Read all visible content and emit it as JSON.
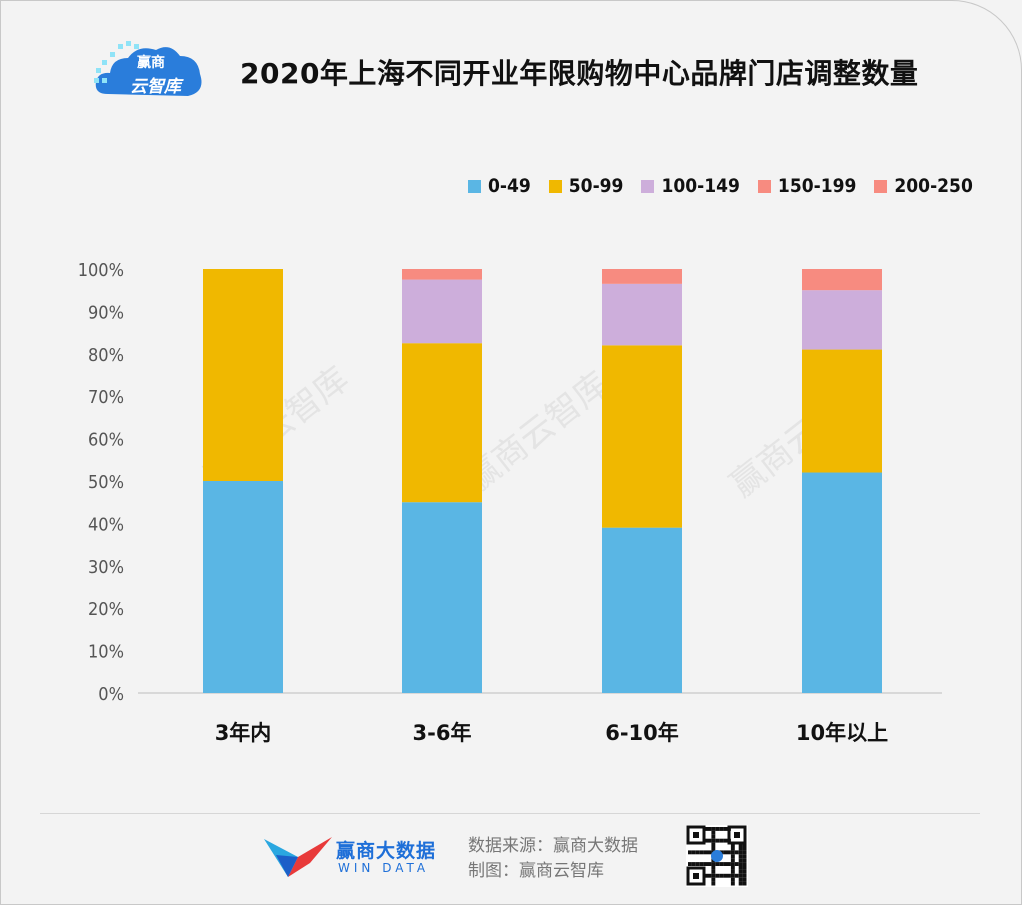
{
  "header": {
    "title": "2020年上海不同开业年限购物中心品牌门店调整数量",
    "logo_line1": "赢商",
    "logo_line2": "云智库"
  },
  "chart_data": {
    "type": "bar",
    "stacked": true,
    "categories": [
      "3年内",
      "3-6年",
      "6-10年",
      "10年以上"
    ],
    "series": [
      {
        "name": "0-49",
        "color": "#5ab6e4",
        "values": [
          50,
          45,
          39,
          52
        ]
      },
      {
        "name": "50-99",
        "color": "#f0b800",
        "values": [
          50,
          37.5,
          43,
          29
        ]
      },
      {
        "name": "100-149",
        "color": "#cdaedb",
        "values": [
          0,
          15,
          14.5,
          14
        ]
      },
      {
        "name": "150-199",
        "color": "#f78b80",
        "values": [
          0,
          2.5,
          3.5,
          5
        ]
      },
      {
        "name": "200-250",
        "color": "#f78b80",
        "values": [
          0,
          0,
          0,
          0
        ]
      }
    ],
    "y_ticks": [
      "0%",
      "10%",
      "20%",
      "30%",
      "40%",
      "50%",
      "60%",
      "70%",
      "80%",
      "90%",
      "100%"
    ],
    "ylim": [
      0,
      100
    ],
    "grid": false,
    "legend_position": "top-right"
  },
  "watermark": "赢商云智库",
  "footer": {
    "brand_cn": "赢商大数据",
    "brand_en": "WIN DATA",
    "source_line": "数据来源：赢商大数据",
    "chart_line": "制图：赢商云智库"
  }
}
